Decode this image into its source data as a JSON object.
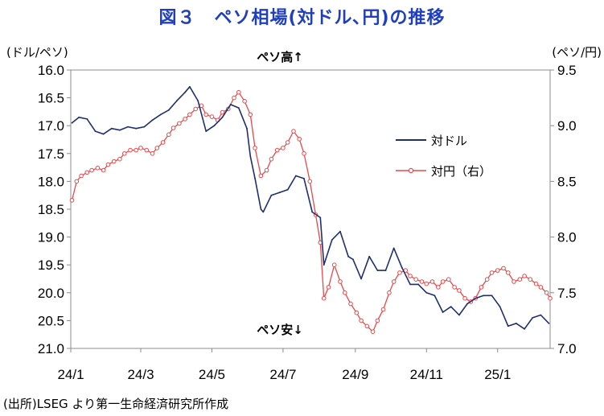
{
  "title": "図３　ペソ相場(対ドル､円)の推移",
  "source": "(出所)LSEG より第一生命経済研究所作成",
  "chart_data": {
    "type": "line",
    "left_axis": {
      "unit_label": "(ドル/ペソ)",
      "reversed": true,
      "range": [
        16.0,
        21.0
      ],
      "ticks": [
        "16.0",
        "16.5",
        "17.0",
        "17.5",
        "18.0",
        "18.5",
        "19.0",
        "19.5",
        "20.0",
        "20.5",
        "21.0"
      ]
    },
    "right_axis": {
      "unit_label": "(ペソ/円)",
      "range": [
        7.0,
        9.5
      ],
      "ticks": [
        "9.5",
        "9.0",
        "8.5",
        "8.0",
        "7.5",
        "7.0"
      ]
    },
    "x_axis": {
      "ticks": [
        "24/1",
        "24/3",
        "24/5",
        "24/7",
        "24/9",
        "24/11",
        "25/1"
      ],
      "range": [
        "2024-01-01",
        "2025-02-15"
      ]
    },
    "grid": false,
    "annotations": {
      "top": "ペソ高↑",
      "bottom": "ペソ安↓"
    },
    "legend": {
      "placement": "center-right",
      "items": [
        {
          "name": "対ドル",
          "color": "#1f2f6f",
          "marker": "none"
        },
        {
          "name": "対円（右）",
          "color": "#e8484a",
          "marker": "circle"
        }
      ]
    },
    "series": [
      {
        "name": "対ドル",
        "axis": "left",
        "color": "#1f2f6f",
        "points": [
          [
            "2024-01-02",
            16.95
          ],
          [
            "2024-01-08",
            16.85
          ],
          [
            "2024-01-15",
            16.88
          ],
          [
            "2024-01-22",
            17.1
          ],
          [
            "2024-01-29",
            17.15
          ],
          [
            "2024-02-05",
            17.05
          ],
          [
            "2024-02-12",
            17.08
          ],
          [
            "2024-02-19",
            17.02
          ],
          [
            "2024-02-26",
            17.05
          ],
          [
            "2024-03-04",
            17.02
          ],
          [
            "2024-03-11",
            16.9
          ],
          [
            "2024-03-18",
            16.8
          ],
          [
            "2024-03-25",
            16.72
          ],
          [
            "2024-04-01",
            16.55
          ],
          [
            "2024-04-08",
            16.4
          ],
          [
            "2024-04-12",
            16.3
          ],
          [
            "2024-04-19",
            16.55
          ],
          [
            "2024-04-26",
            17.1
          ],
          [
            "2024-05-03",
            17.0
          ],
          [
            "2024-05-10",
            16.85
          ],
          [
            "2024-05-17",
            16.62
          ],
          [
            "2024-05-24",
            16.68
          ],
          [
            "2024-05-31",
            17.05
          ],
          [
            "2024-06-03",
            17.55
          ],
          [
            "2024-06-07",
            17.95
          ],
          [
            "2024-06-12",
            18.5
          ],
          [
            "2024-06-14",
            18.55
          ],
          [
            "2024-06-21",
            18.25
          ],
          [
            "2024-06-28",
            18.2
          ],
          [
            "2024-07-05",
            18.15
          ],
          [
            "2024-07-12",
            17.9
          ],
          [
            "2024-07-19",
            17.95
          ],
          [
            "2024-07-26",
            18.55
          ],
          [
            "2024-08-02",
            18.65
          ],
          [
            "2024-08-05",
            19.5
          ],
          [
            "2024-08-12",
            19.05
          ],
          [
            "2024-08-19",
            18.9
          ],
          [
            "2024-08-26",
            19.35
          ],
          [
            "2024-08-30",
            19.4
          ],
          [
            "2024-09-06",
            19.75
          ],
          [
            "2024-09-13",
            19.35
          ],
          [
            "2024-09-20",
            19.6
          ],
          [
            "2024-09-27",
            19.6
          ],
          [
            "2024-10-04",
            19.2
          ],
          [
            "2024-10-11",
            19.55
          ],
          [
            "2024-10-18",
            19.85
          ],
          [
            "2024-10-25",
            19.85
          ],
          [
            "2024-11-01",
            20.0
          ],
          [
            "2024-11-08",
            20.05
          ],
          [
            "2024-11-15",
            20.35
          ],
          [
            "2024-11-22",
            20.25
          ],
          [
            "2024-11-29",
            20.4
          ],
          [
            "2024-12-06",
            20.2
          ],
          [
            "2024-12-13",
            20.1
          ],
          [
            "2024-12-20",
            20.05
          ],
          [
            "2024-12-27",
            20.05
          ],
          [
            "2025-01-03",
            20.25
          ],
          [
            "2025-01-10",
            20.6
          ],
          [
            "2025-01-17",
            20.55
          ],
          [
            "2025-01-24",
            20.65
          ],
          [
            "2025-01-31",
            20.45
          ],
          [
            "2025-02-07",
            20.4
          ],
          [
            "2025-02-14",
            20.55
          ]
        ]
      },
      {
        "name": "対円（右）",
        "axis": "right",
        "color": "#e8484a",
        "points": [
          [
            "2024-01-02",
            8.33
          ],
          [
            "2024-01-06",
            8.5
          ],
          [
            "2024-01-10",
            8.55
          ],
          [
            "2024-01-15",
            8.58
          ],
          [
            "2024-01-19",
            8.6
          ],
          [
            "2024-01-24",
            8.62
          ],
          [
            "2024-01-29",
            8.6
          ],
          [
            "2024-02-02",
            8.65
          ],
          [
            "2024-02-07",
            8.68
          ],
          [
            "2024-02-12",
            8.7
          ],
          [
            "2024-02-16",
            8.75
          ],
          [
            "2024-02-21",
            8.78
          ],
          [
            "2024-02-26",
            8.78
          ],
          [
            "2024-03-01",
            8.8
          ],
          [
            "2024-03-06",
            8.78
          ],
          [
            "2024-03-11",
            8.75
          ],
          [
            "2024-03-15",
            8.8
          ],
          [
            "2024-03-20",
            8.85
          ],
          [
            "2024-03-25",
            8.92
          ],
          [
            "2024-03-29",
            8.98
          ],
          [
            "2024-04-03",
            9.02
          ],
          [
            "2024-04-08",
            9.06
          ],
          [
            "2024-04-12",
            9.1
          ],
          [
            "2024-04-17",
            9.15
          ],
          [
            "2024-04-22",
            9.18
          ],
          [
            "2024-04-26",
            9.1
          ],
          [
            "2024-05-01",
            9.08
          ],
          [
            "2024-05-06",
            9.05
          ],
          [
            "2024-05-10",
            9.12
          ],
          [
            "2024-05-15",
            9.15
          ],
          [
            "2024-05-20",
            9.25
          ],
          [
            "2024-05-24",
            9.3
          ],
          [
            "2024-05-29",
            9.22
          ],
          [
            "2024-06-03",
            9.1
          ],
          [
            "2024-06-07",
            8.8
          ],
          [
            "2024-06-12",
            8.55
          ],
          [
            "2024-06-17",
            8.6
          ],
          [
            "2024-06-21",
            8.7
          ],
          [
            "2024-06-26",
            8.78
          ],
          [
            "2024-07-01",
            8.8
          ],
          [
            "2024-07-05",
            8.85
          ],
          [
            "2024-07-10",
            8.95
          ],
          [
            "2024-07-15",
            8.88
          ],
          [
            "2024-07-19",
            8.75
          ],
          [
            "2024-07-24",
            8.5
          ],
          [
            "2024-07-29",
            8.2
          ],
          [
            "2024-08-02",
            7.95
          ],
          [
            "2024-08-05",
            7.45
          ],
          [
            "2024-08-09",
            7.55
          ],
          [
            "2024-08-14",
            7.75
          ],
          [
            "2024-08-19",
            7.6
          ],
          [
            "2024-08-23",
            7.5
          ],
          [
            "2024-08-28",
            7.4
          ],
          [
            "2024-09-02",
            7.32
          ],
          [
            "2024-09-06",
            7.25
          ],
          [
            "2024-09-11",
            7.2
          ],
          [
            "2024-09-16",
            7.15
          ],
          [
            "2024-09-20",
            7.25
          ],
          [
            "2024-09-25",
            7.35
          ],
          [
            "2024-09-30",
            7.5
          ],
          [
            "2024-10-04",
            7.6
          ],
          [
            "2024-10-09",
            7.68
          ],
          [
            "2024-10-14",
            7.7
          ],
          [
            "2024-10-18",
            7.65
          ],
          [
            "2024-10-23",
            7.62
          ],
          [
            "2024-10-28",
            7.6
          ],
          [
            "2024-11-01",
            7.58
          ],
          [
            "2024-11-06",
            7.6
          ],
          [
            "2024-11-11",
            7.55
          ],
          [
            "2024-11-15",
            7.6
          ],
          [
            "2024-11-20",
            7.62
          ],
          [
            "2024-11-25",
            7.55
          ],
          [
            "2024-11-29",
            7.52
          ],
          [
            "2024-12-04",
            7.45
          ],
          [
            "2024-12-09",
            7.42
          ],
          [
            "2024-12-13",
            7.45
          ],
          [
            "2024-12-18",
            7.55
          ],
          [
            "2024-12-23",
            7.62
          ],
          [
            "2024-12-27",
            7.68
          ],
          [
            "2025-01-01",
            7.7
          ],
          [
            "2025-01-06",
            7.72
          ],
          [
            "2025-01-10",
            7.68
          ],
          [
            "2025-01-15",
            7.6
          ],
          [
            "2025-01-20",
            7.62
          ],
          [
            "2025-01-24",
            7.65
          ],
          [
            "2025-01-29",
            7.62
          ],
          [
            "2025-02-03",
            7.58
          ],
          [
            "2025-02-07",
            7.55
          ],
          [
            "2025-02-12",
            7.5
          ],
          [
            "2025-02-15",
            7.45
          ]
        ]
      }
    ]
  }
}
